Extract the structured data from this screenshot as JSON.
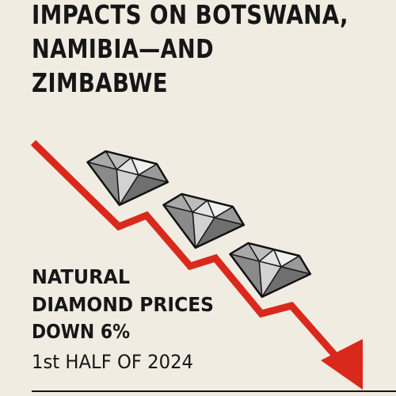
{
  "headline": {
    "lines": [
      "IMPACTS ON BOTSWANA,",
      "NAMIBIA—AND",
      "ZIMBABWE"
    ]
  },
  "callout": {
    "lines": [
      "NATURAL",
      "DIAMOND PRICES",
      "DOWN 6%"
    ],
    "period": "1st HALF OF 2024"
  }
}
